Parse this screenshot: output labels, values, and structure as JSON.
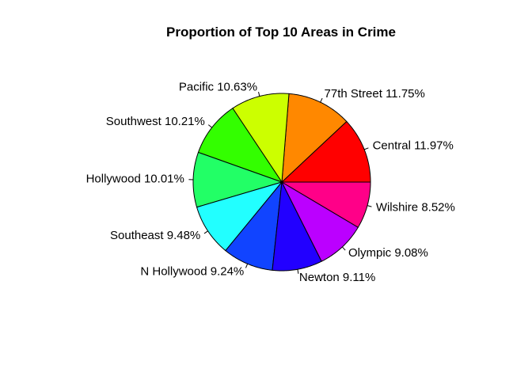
{
  "chart_data": {
    "type": "pie",
    "title": "Proportion of Top 10 Areas in Crime",
    "slices": [
      {
        "label": "Central 11.97%",
        "value": 11.97,
        "color": "#FF0000"
      },
      {
        "label": "77th Street 11.75%",
        "value": 11.75,
        "color": "#FF8800"
      },
      {
        "label": "Pacific 10.63%",
        "value": 10.63,
        "color": "#CCFF00"
      },
      {
        "label": "Southwest 10.21%",
        "value": 10.21,
        "color": "#33FF00"
      },
      {
        "label": "Hollywood 10.01%",
        "value": 10.01,
        "color": "#22FF66"
      },
      {
        "label": "Southeast 9.48%",
        "value": 9.48,
        "color": "#22FFFF"
      },
      {
        "label": "N Hollywood 9.24%",
        "value": 9.24,
        "color": "#1144FF"
      },
      {
        "label": "Newton 9.11%",
        "value": 9.11,
        "color": "#2200FF"
      },
      {
        "label": "Olympic 9.08%",
        "value": 9.08,
        "color": "#BB00FF"
      },
      {
        "label": "Wilshire 8.52%",
        "value": 8.52,
        "color": "#FF0088"
      }
    ],
    "direction": "counterclockwise",
    "start": "east"
  }
}
